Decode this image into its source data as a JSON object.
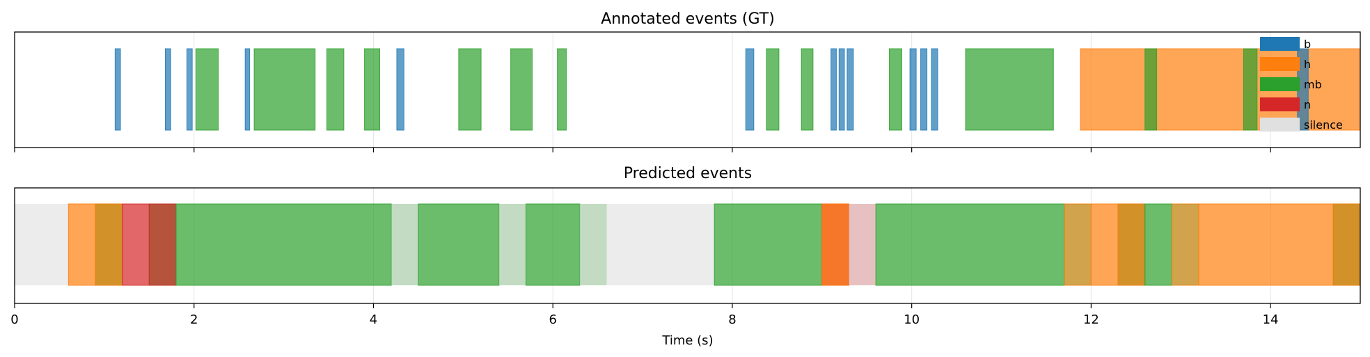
{
  "colors": {
    "b": "#1f77b4",
    "h": "#ff7f0e",
    "mb": "#2ca02c",
    "n": "#d62728",
    "silence": "#e0e0e0"
  },
  "x_axis": {
    "label": "Time (s)",
    "xlim": [
      0,
      15
    ],
    "ticks": [
      0,
      2,
      4,
      6,
      8,
      10,
      12,
      14
    ],
    "tick_labels": [
      "0",
      "2",
      "4",
      "6",
      "8",
      "10",
      "12",
      "14"
    ]
  },
  "chart_data": [
    {
      "type": "event_timeline",
      "title": "Annotated events (GT)",
      "xlim": [
        0,
        15
      ],
      "grid": true,
      "legend": {
        "placement": "top-right",
        "entries": [
          "b",
          "h",
          "mb",
          "n",
          "silence"
        ]
      },
      "events": [
        {
          "label": "b",
          "start": 1.12,
          "end": 1.18
        },
        {
          "label": "b",
          "start": 1.68,
          "end": 1.74
        },
        {
          "label": "b",
          "start": 1.92,
          "end": 1.98
        },
        {
          "label": "mb",
          "start": 2.02,
          "end": 2.27
        },
        {
          "label": "b",
          "start": 2.57,
          "end": 2.62
        },
        {
          "label": "mb",
          "start": 2.67,
          "end": 3.35
        },
        {
          "label": "mb",
          "start": 3.48,
          "end": 3.67
        },
        {
          "label": "mb",
          "start": 3.9,
          "end": 4.07
        },
        {
          "label": "b",
          "start": 4.26,
          "end": 4.34
        },
        {
          "label": "mb",
          "start": 4.95,
          "end": 5.2
        },
        {
          "label": "mb",
          "start": 5.53,
          "end": 5.77
        },
        {
          "label": "mb",
          "start": 6.05,
          "end": 6.15
        },
        {
          "label": "b",
          "start": 8.15,
          "end": 8.24
        },
        {
          "label": "mb",
          "start": 8.38,
          "end": 8.52
        },
        {
          "label": "mb",
          "start": 8.77,
          "end": 8.9
        },
        {
          "label": "b",
          "start": 9.1,
          "end": 9.16
        },
        {
          "label": "b",
          "start": 9.19,
          "end": 9.25
        },
        {
          "label": "b",
          "start": 9.28,
          "end": 9.35
        },
        {
          "label": "mb",
          "start": 9.75,
          "end": 9.89
        },
        {
          "label": "b",
          "start": 9.98,
          "end": 10.05
        },
        {
          "label": "b",
          "start": 10.1,
          "end": 10.17
        },
        {
          "label": "b",
          "start": 10.22,
          "end": 10.29
        },
        {
          "label": "mb",
          "start": 10.6,
          "end": 11.58
        },
        {
          "label": "h",
          "start": 11.88,
          "end": 15.0
        },
        {
          "label": "mb",
          "start": 12.6,
          "end": 12.73
        },
        {
          "label": "mb",
          "start": 13.7,
          "end": 13.85
        },
        {
          "label": "b",
          "start": 14.3,
          "end": 14.42
        }
      ]
    },
    {
      "type": "event_timeline",
      "title": "Predicted events",
      "xlim": [
        0,
        15
      ],
      "grid": true,
      "events": [
        {
          "label": "silence",
          "start": 0.0,
          "end": 0.6
        },
        {
          "label": "h",
          "start": 0.6,
          "end": 0.9
        },
        {
          "label": "mb",
          "start": 0.9,
          "end": 1.2
        },
        {
          "label": "h",
          "start": 0.9,
          "end": 1.2
        },
        {
          "label": "n",
          "start": 1.2,
          "end": 1.5
        },
        {
          "label": "mb",
          "start": 1.5,
          "end": 1.8
        },
        {
          "label": "n",
          "start": 1.5,
          "end": 1.8
        },
        {
          "label": "mb",
          "start": 1.8,
          "end": 4.2
        },
        {
          "label": "silence",
          "start": 4.2,
          "end": 4.5
        },
        {
          "label": "mb",
          "start": 4.2,
          "end": 4.5,
          "faint": true
        },
        {
          "label": "mb",
          "start": 4.5,
          "end": 5.4
        },
        {
          "label": "silence",
          "start": 5.4,
          "end": 5.7
        },
        {
          "label": "mb",
          "start": 5.4,
          "end": 5.7,
          "faint": true
        },
        {
          "label": "mb",
          "start": 5.7,
          "end": 6.3
        },
        {
          "label": "silence",
          "start": 6.3,
          "end": 6.6
        },
        {
          "label": "mb",
          "start": 6.3,
          "end": 6.6,
          "faint": true
        },
        {
          "label": "silence",
          "start": 6.6,
          "end": 7.8
        },
        {
          "label": "mb",
          "start": 7.8,
          "end": 9.0
        },
        {
          "label": "n",
          "start": 9.0,
          "end": 9.3
        },
        {
          "label": "h",
          "start": 9.0,
          "end": 9.3
        },
        {
          "label": "silence",
          "start": 9.3,
          "end": 9.6
        },
        {
          "label": "n",
          "start": 9.3,
          "end": 9.6,
          "faint": true
        },
        {
          "label": "mb",
          "start": 9.6,
          "end": 11.7
        },
        {
          "label": "h",
          "start": 11.7,
          "end": 12.0
        },
        {
          "label": "mb",
          "start": 11.7,
          "end": 12.0,
          "faint": true
        },
        {
          "label": "h",
          "start": 12.0,
          "end": 12.3
        },
        {
          "label": "mb",
          "start": 12.3,
          "end": 12.6
        },
        {
          "label": "h",
          "start": 12.3,
          "end": 12.6
        },
        {
          "label": "mb",
          "start": 12.6,
          "end": 12.9
        },
        {
          "label": "h",
          "start": 12.9,
          "end": 13.2
        },
        {
          "label": "mb",
          "start": 12.9,
          "end": 13.2,
          "faint": true
        },
        {
          "label": "h",
          "start": 13.2,
          "end": 14.7
        },
        {
          "label": "mb",
          "start": 14.7,
          "end": 15.0
        },
        {
          "label": "h",
          "start": 14.7,
          "end": 15.0
        }
      ]
    }
  ]
}
